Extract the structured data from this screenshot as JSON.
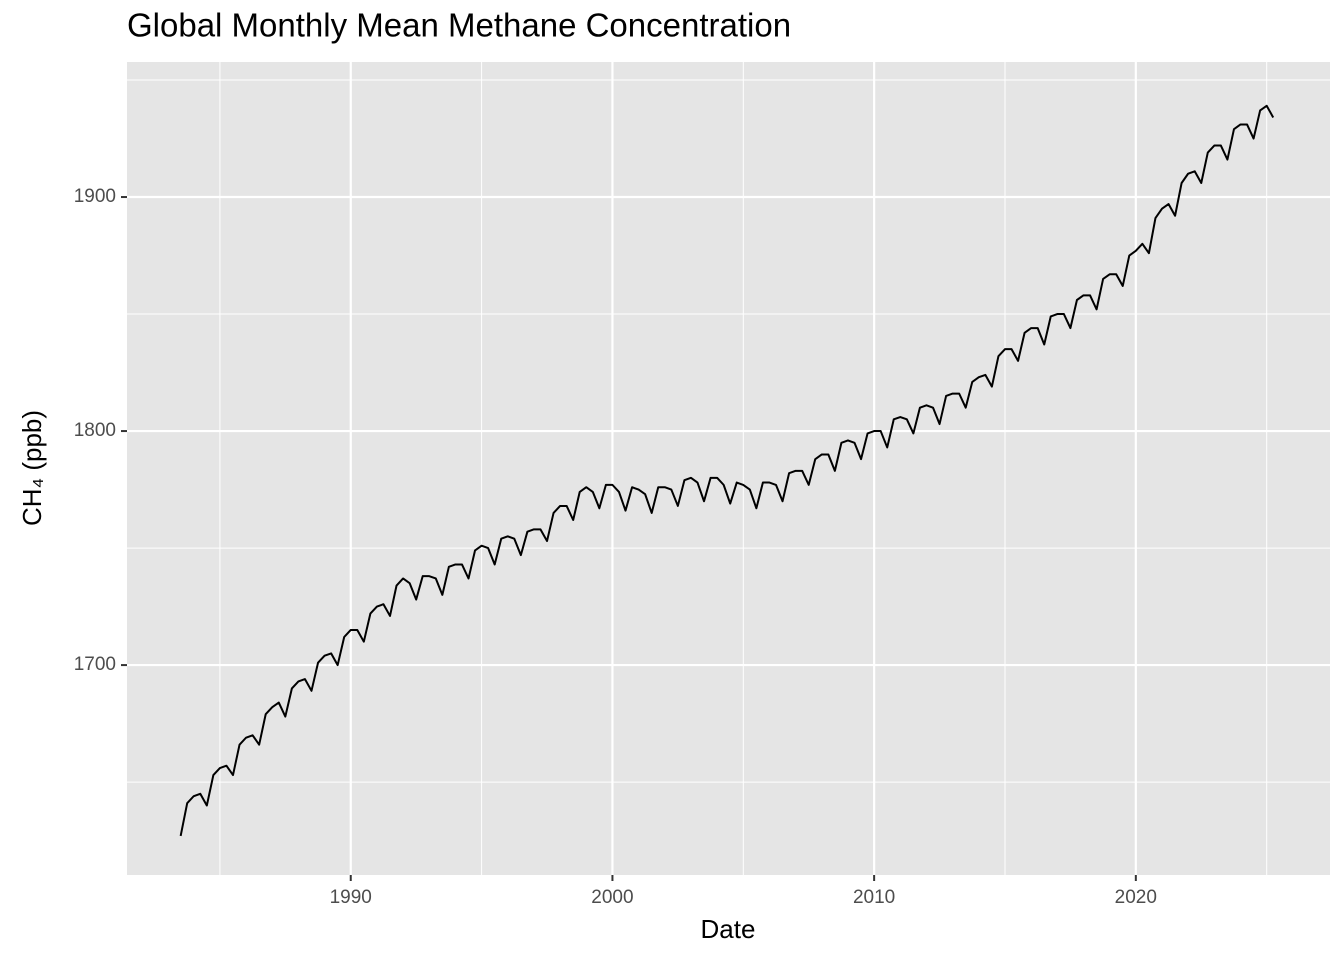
{
  "chart_data": {
    "type": "line",
    "title": "Global Monthly Mean Methane Concentration",
    "x_label": "Date",
    "y_label": "CH₄ (ppb)",
    "color": "#000000",
    "grid": true,
    "xlim": [
      1981.45,
      2027.42
    ],
    "ylim": [
      1610.3,
      1957.7
    ],
    "xticks": [
      1990,
      2000,
      2010,
      2020
    ],
    "yticks": [
      1700,
      1800,
      1900
    ],
    "minor_xticks": [
      1985,
      1995,
      2005,
      2015,
      2025
    ],
    "minor_yticks": [
      1650,
      1750,
      1850,
      1950
    ],
    "x": [
      1983.5,
      1983.75,
      1984,
      1984.25,
      1984.5,
      1984.75,
      1985,
      1985.25,
      1985.5,
      1985.75,
      1986,
      1986.25,
      1986.5,
      1986.75,
      1987,
      1987.25,
      1987.5,
      1987.75,
      1988,
      1988.25,
      1988.5,
      1988.75,
      1989,
      1989.25,
      1989.5,
      1989.75,
      1990,
      1990.25,
      1990.5,
      1990.75,
      1991,
      1991.25,
      1991.5,
      1991.75,
      1992,
      1992.25,
      1992.5,
      1992.75,
      1993,
      1993.25,
      1993.5,
      1993.75,
      1994,
      1994.25,
      1994.5,
      1994.75,
      1995,
      1995.25,
      1995.5,
      1995.75,
      1996,
      1996.25,
      1996.5,
      1996.75,
      1997,
      1997.25,
      1997.5,
      1997.75,
      1998,
      1998.25,
      1998.5,
      1998.75,
      1999,
      1999.25,
      1999.5,
      1999.75,
      2000,
      2000.25,
      2000.5,
      2000.75,
      2001,
      2001.25,
      2001.5,
      2001.75,
      2002,
      2002.25,
      2002.5,
      2002.75,
      2003,
      2003.25,
      2003.5,
      2003.75,
      2004,
      2004.25,
      2004.5,
      2004.75,
      2005,
      2005.25,
      2005.5,
      2005.75,
      2006,
      2006.25,
      2006.5,
      2006.75,
      2007,
      2007.25,
      2007.5,
      2007.75,
      2008,
      2008.25,
      2008.5,
      2008.75,
      2009,
      2009.25,
      2009.5,
      2009.75,
      2010,
      2010.25,
      2010.5,
      2010.75,
      2011,
      2011.25,
      2011.5,
      2011.75,
      2012,
      2012.25,
      2012.5,
      2012.75,
      2013,
      2013.25,
      2013.5,
      2013.75,
      2014,
      2014.25,
      2014.5,
      2014.75,
      2015,
      2015.25,
      2015.5,
      2015.75,
      2016,
      2016.25,
      2016.5,
      2016.75,
      2017,
      2017.25,
      2017.5,
      2017.75,
      2018,
      2018.25,
      2018.5,
      2018.75,
      2019,
      2019.25,
      2019.5,
      2019.75,
      2020,
      2020.25,
      2020.5,
      2020.75,
      2021,
      2021.25,
      2021.5,
      2021.75,
      2022,
      2022.25,
      2022.5,
      2022.75,
      2023,
      2023.25,
      2023.5,
      2023.75,
      2024,
      2024.25,
      2024.5,
      2024.75,
      2025,
      2025.25
    ],
    "values": [
      1627,
      1641,
      1644,
      1645,
      1640,
      1653,
      1656,
      1657,
      1653,
      1666,
      1669,
      1670,
      1666,
      1679,
      1682,
      1684,
      1678,
      1690,
      1693,
      1694,
      1689,
      1701,
      1704,
      1705,
      1700,
      1712,
      1715,
      1715,
      1710,
      1722,
      1725,
      1726,
      1721,
      1734,
      1737,
      1735,
      1728,
      1738,
      1738,
      1737,
      1730,
      1742,
      1743,
      1743,
      1737,
      1749,
      1751,
      1750,
      1743,
      1754,
      1755,
      1754,
      1747,
      1757,
      1758,
      1758,
      1753,
      1765,
      1768,
      1768,
      1762,
      1774,
      1776,
      1774,
      1767,
      1777,
      1777,
      1774,
      1766,
      1776,
      1775,
      1773,
      1765,
      1776,
      1776,
      1775,
      1768,
      1779,
      1780,
      1778,
      1770,
      1780,
      1780,
      1777,
      1769,
      1778,
      1777,
      1775,
      1767,
      1778,
      1778,
      1777,
      1770,
      1782,
      1783,
      1783,
      1777,
      1788,
      1790,
      1790,
      1783,
      1795,
      1796,
      1795,
      1788,
      1799,
      1800,
      1800,
      1793,
      1805,
      1806,
      1805,
      1799,
      1810,
      1811,
      1810,
      1803,
      1815,
      1816,
      1816,
      1810,
      1821,
      1823,
      1824,
      1819,
      1832,
      1835,
      1835,
      1830,
      1842,
      1844,
      1844,
      1837,
      1849,
      1850,
      1850,
      1844,
      1856,
      1858,
      1858,
      1852,
      1865,
      1867,
      1867,
      1862,
      1875,
      1877,
      1880,
      1876,
      1891,
      1895,
      1897,
      1892,
      1906,
      1910,
      1911,
      1906,
      1919,
      1922,
      1922,
      1916,
      1929,
      1931,
      1931,
      1925,
      1937,
      1939,
      1934
    ]
  }
}
